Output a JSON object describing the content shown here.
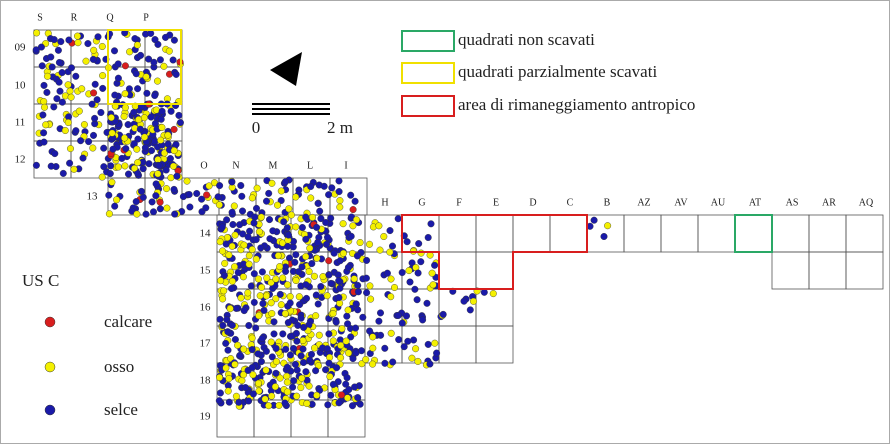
{
  "columns_top": [
    "S",
    "R",
    "Q",
    "P"
  ],
  "columns_mid": [
    "O",
    "N",
    "M",
    "L",
    "I"
  ],
  "columns_right": [
    "H",
    "G",
    "F",
    "E",
    "D",
    "C",
    "B",
    "AZ",
    "AV",
    "AU",
    "AT",
    "AS",
    "AR",
    "AQ"
  ],
  "rows": [
    "09",
    "10",
    "11",
    "12",
    "13",
    "14",
    "15",
    "16",
    "17",
    "18",
    "19"
  ],
  "legend": [
    "quadrati non scavati",
    "quadrati parzialmente scavati",
    "area di rimaneggiamento antropico"
  ],
  "scale": {
    "start": "0",
    "end": "2 m"
  },
  "symbols": {
    "title": "US C",
    "items": [
      "calcare",
      "osso",
      "selce"
    ]
  }
}
